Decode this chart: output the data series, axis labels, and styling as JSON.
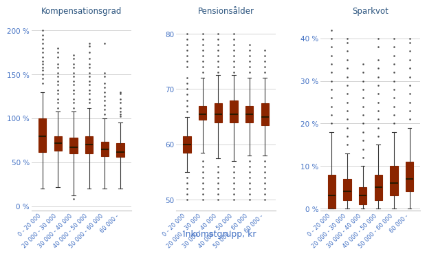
{
  "titles": [
    "Kompensationsgrad",
    "Pensionsålder",
    "Sparkvot"
  ],
  "xlabel": "Inkomstgrupp, kr",
  "categories": [
    "0 - 20 000",
    "20 000 - 30 000",
    "30 000 - 40 000",
    "40 000 - 50 000",
    "50 000 - 60 000",
    "60 000 -"
  ],
  "box_facecolor": "#C0390A",
  "box_edgecolor": "#8B2500",
  "median_color": "#2A1A00",
  "whisker_color": "#333333",
  "flier_color": "#333333",
  "title_color": "#2B547E",
  "ytick_color": "#4472C4",
  "xtick_color": "#4472C4",
  "xlabel_color": "#4472C4",
  "background_color": "#FFFFFF",
  "grid_color": "#CCCCCC",
  "kompensationsgrad": {
    "ylim": [
      -5,
      215
    ],
    "yticks": [
      0,
      50,
      100,
      150,
      200
    ],
    "yticklabels": [
      "0 %",
      "50 %",
      "100 %",
      "150 %",
      "200 %"
    ],
    "boxes": [
      {
        "q1": 62,
        "median": 80,
        "q3": 100,
        "whislo": 20,
        "whishi": 130,
        "fliers_lo": [],
        "fliers_hi": [
          140,
          145,
          150,
          155,
          158,
          162,
          165,
          170,
          175,
          180,
          185,
          190,
          195,
          200
        ]
      },
      {
        "q1": 63,
        "median": 72,
        "q3": 80,
        "whislo": 22,
        "whishi": 108,
        "fliers_lo": [],
        "fliers_hi": [
          112,
          118,
          122,
          128,
          132,
          138,
          142,
          148,
          152,
          158,
          162,
          170,
          175,
          180
        ]
      },
      {
        "q1": 60,
        "median": 67,
        "q3": 78,
        "whislo": 12,
        "whishi": 108,
        "fliers_lo": [
          8
        ],
        "fliers_hi": [
          112,
          118,
          122,
          128,
          132,
          138,
          142,
          148,
          152,
          158,
          162,
          168,
          172
        ]
      },
      {
        "q1": 60,
        "median": 70,
        "q3": 80,
        "whislo": 20,
        "whishi": 112,
        "fliers_lo": [],
        "fliers_hi": [
          118,
          122,
          128,
          132,
          138,
          142,
          148,
          152,
          158,
          162,
          168,
          175,
          182,
          185
        ]
      },
      {
        "q1": 57,
        "median": 65,
        "q3": 73,
        "whislo": 20,
        "whishi": 100,
        "fliers_lo": [],
        "fliers_hi": [
          105,
          110,
          115,
          120,
          125,
          130,
          135,
          140,
          148,
          152,
          185
        ]
      },
      {
        "q1": 56,
        "median": 62,
        "q3": 72,
        "whislo": 20,
        "whishi": 95,
        "fliers_lo": [],
        "fliers_hi": [
          102,
          105,
          108,
          112,
          118,
          122,
          128,
          130
        ]
      }
    ]
  },
  "pensionsalder": {
    "ylim": [
      48,
      83
    ],
    "yticks": [
      50,
      60,
      70,
      80
    ],
    "yticklabels": [
      "50",
      "60",
      "70",
      "80"
    ],
    "boxes": [
      {
        "q1": 58.5,
        "median": 60.0,
        "q3": 61.5,
        "whislo": 55.0,
        "whishi": 65.0,
        "fliers_lo": [
          54.0,
          53.0,
          52.0,
          51.0,
          50.0
        ],
        "fliers_hi": [
          66.0,
          67.0,
          68.0,
          69.0,
          70.0,
          71.0,
          72.0,
          74.0,
          75.0,
          76.0,
          77.0,
          78.0,
          79.0,
          80.0
        ]
      },
      {
        "q1": 64.5,
        "median": 65.5,
        "q3": 67.0,
        "whislo": 58.5,
        "whishi": 72.0,
        "fliers_lo": [
          57.0,
          56.0,
          55.0,
          54.0,
          53.0,
          52.0,
          51.0,
          50.0
        ],
        "fliers_hi": [
          73.0,
          74.0,
          75.0,
          76.0,
          77.0,
          78.0,
          79.0,
          80.0
        ]
      },
      {
        "q1": 64.0,
        "median": 65.5,
        "q3": 67.5,
        "whislo": 57.5,
        "whishi": 72.5,
        "fliers_lo": [
          56.0,
          55.0,
          54.0,
          53.0,
          52.0,
          51.0,
          50.0
        ],
        "fliers_hi": [
          73.0,
          74.0,
          75.0,
          76.0,
          77.0,
          78.0,
          79.0,
          80.0
        ]
      },
      {
        "q1": 64.0,
        "median": 65.5,
        "q3": 68.0,
        "whislo": 57.0,
        "whishi": 72.5,
        "fliers_lo": [
          56.0,
          55.0,
          54.0,
          53.0,
          52.0,
          51.0,
          50.0
        ],
        "fliers_hi": [
          73.0,
          74.0,
          75.0,
          76.0,
          77.0,
          78.0,
          79.0,
          80.0
        ]
      },
      {
        "q1": 64.0,
        "median": 65.5,
        "q3": 67.0,
        "whislo": 58.0,
        "whishi": 72.0,
        "fliers_lo": [
          57.0,
          56.0,
          55.0,
          54.0,
          53.0,
          52.0,
          51.0,
          50.0
        ],
        "fliers_hi": [
          73.0,
          74.0,
          75.0,
          76.0,
          77.0,
          78.0
        ]
      },
      {
        "q1": 63.5,
        "median": 65.0,
        "q3": 67.5,
        "whislo": 58.0,
        "whishi": 72.0,
        "fliers_lo": [
          57.0,
          56.0,
          55.0,
          54.0,
          53.0,
          52.0,
          51.0,
          50.0
        ],
        "fliers_hi": [
          73.0,
          74.0,
          75.0,
          76.0,
          77.0
        ]
      }
    ]
  },
  "sparkvot": {
    "ylim": [
      -0.5,
      45
    ],
    "yticks": [
      0,
      10,
      20,
      30,
      40
    ],
    "yticklabels": [
      "0 %",
      "10 %",
      "20 %",
      "30 %",
      "40 %"
    ],
    "boxes": [
      {
        "q1": 0,
        "median": 3,
        "q3": 8,
        "whislo": 0,
        "whishi": 18,
        "fliers_lo": [],
        "fliers_hi": [
          20,
          22,
          24,
          26,
          28,
          30,
          32,
          34,
          36,
          38,
          40,
          42
        ]
      },
      {
        "q1": 2,
        "median": 4,
        "q3": 7,
        "whislo": 0,
        "whishi": 13,
        "fliers_lo": [],
        "fliers_hi": [
          15,
          17,
          19,
          21,
          23,
          25,
          27,
          29,
          31,
          33,
          35,
          37,
          39,
          40
        ]
      },
      {
        "q1": 1,
        "median": 3,
        "q3": 5,
        "whislo": 0,
        "whishi": 10,
        "fliers_lo": [],
        "fliers_hi": [
          12,
          14,
          16,
          18,
          20,
          22,
          24,
          26,
          28,
          30,
          32,
          34
        ]
      },
      {
        "q1": 2,
        "median": 5,
        "q3": 8,
        "whislo": 0,
        "whishi": 15,
        "fliers_lo": [],
        "fliers_hi": [
          17,
          19,
          21,
          23,
          25,
          27,
          29,
          31,
          33,
          35,
          38,
          40
        ]
      },
      {
        "q1": 3,
        "median": 6,
        "q3": 10,
        "whislo": 0,
        "whishi": 18,
        "fliers_lo": [],
        "fliers_hi": [
          20,
          22,
          24,
          26,
          28,
          30,
          32,
          34,
          36,
          38,
          40
        ]
      },
      {
        "q1": 4,
        "median": 7,
        "q3": 11,
        "whislo": 0,
        "whishi": 19,
        "fliers_lo": [],
        "fliers_hi": [
          21,
          23,
          25,
          27,
          29,
          31,
          33,
          35,
          37,
          39,
          40
        ]
      }
    ]
  }
}
